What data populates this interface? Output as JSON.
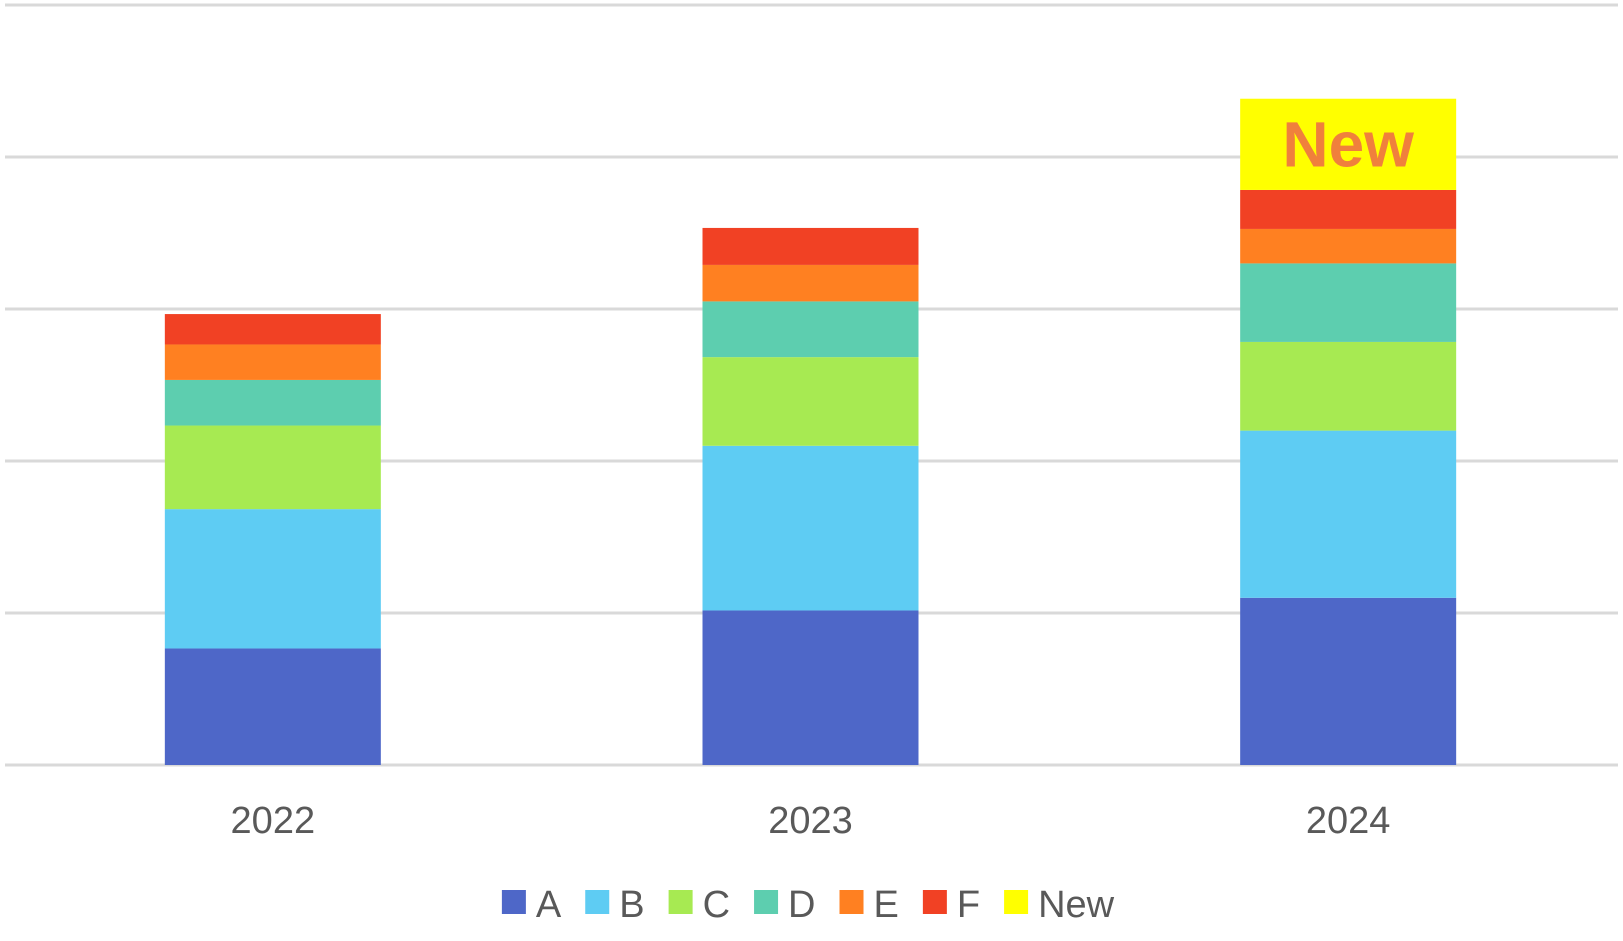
{
  "chart_data": {
    "type": "bar",
    "stacked": true,
    "categories": [
      "2022",
      "2023",
      "2024"
    ],
    "series": [
      {
        "name": "A",
        "color": "#4E67C8",
        "values": [
          2.3,
          3.05,
          3.3
        ]
      },
      {
        "name": "B",
        "color": "#5ECCF3",
        "values": [
          2.75,
          3.25,
          3.3
        ]
      },
      {
        "name": "C",
        "color": "#A7EA52",
        "values": [
          1.65,
          1.75,
          1.75
        ]
      },
      {
        "name": "D",
        "color": "#5DCEAF",
        "values": [
          0.9,
          1.1,
          1.55
        ]
      },
      {
        "name": "E",
        "color": "#FF8021",
        "values": [
          0.7,
          0.72,
          0.68
        ]
      },
      {
        "name": "F",
        "color": "#F14124",
        "values": [
          0.6,
          0.73,
          0.77
        ]
      },
      {
        "name": "New",
        "color": "#FFFF00",
        "values": [
          0,
          0,
          1.8
        ]
      }
    ],
    "ylim": [
      0,
      15
    ],
    "y_gridlines": [
      0,
      3,
      6,
      9,
      12,
      15
    ],
    "y_tick_labels_visible": false,
    "grid": true,
    "legend_position": "bottom",
    "annotations": [
      {
        "text": "New",
        "category": "2024",
        "series": "New",
        "color": "#F0803C"
      }
    ],
    "xlabel": "",
    "ylabel": "",
    "title": ""
  }
}
